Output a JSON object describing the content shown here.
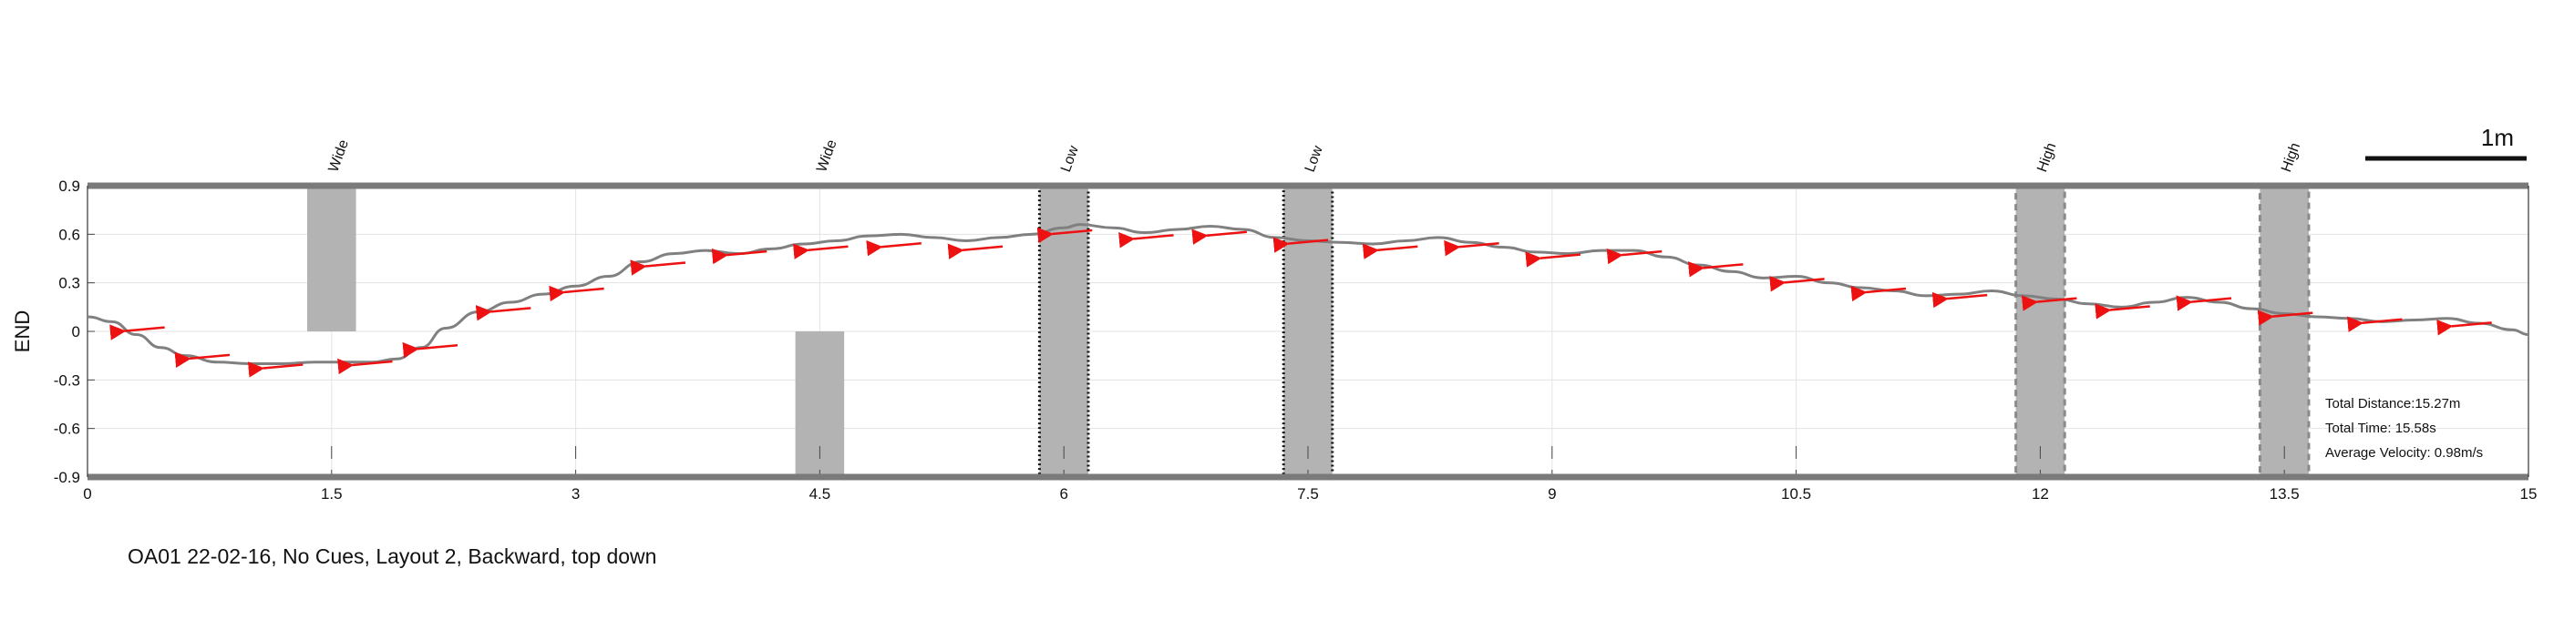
{
  "caption": "OA01 22-02-16, No Cues, Layout 2, Backward, top down",
  "stats": {
    "distance": "Total Distance:15.27m",
    "time": "Total Time: 15.58s",
    "velocity": "Average Velocity: 0.98m/s"
  },
  "scale_bar_label": "1m",
  "chart_data": {
    "type": "line",
    "xlabel": "",
    "ylabel": "END",
    "xlim": [
      0,
      15
    ],
    "ylim": [
      -0.9,
      0.9
    ],
    "xticks": [
      "0",
      "1.5",
      "3",
      "4.5",
      "6",
      "7.5",
      "9",
      "10.5",
      "12",
      "13.5",
      "15"
    ],
    "yticks": [
      "0.9",
      "0.6",
      "0.3",
      "0",
      "-0.3",
      "-0.6",
      "-0.9"
    ],
    "grid": true,
    "path": {
      "x": [
        0,
        0.15,
        0.3,
        0.45,
        0.6,
        0.8,
        1.0,
        1.2,
        1.4,
        1.6,
        1.75,
        1.9,
        2.05,
        2.2,
        2.4,
        2.6,
        2.8,
        3.0,
        3.2,
        3.4,
        3.6,
        3.8,
        4.0,
        4.2,
        4.4,
        4.6,
        4.8,
        5.0,
        5.2,
        5.4,
        5.6,
        5.8,
        6.0,
        6.1,
        6.3,
        6.5,
        6.7,
        6.9,
        7.1,
        7.3,
        7.5,
        7.7,
        7.9,
        8.1,
        8.3,
        8.5,
        8.7,
        8.9,
        9.1,
        9.3,
        9.5,
        9.7,
        9.9,
        10.1,
        10.3,
        10.5,
        10.7,
        10.9,
        11.1,
        11.3,
        11.5,
        11.7,
        11.9,
        12.1,
        12.3,
        12.5,
        12.7,
        12.9,
        13.1,
        13.3,
        13.5,
        13.7,
        13.9,
        14.1,
        14.3,
        14.5,
        14.7,
        14.9,
        15.0
      ],
      "y": [
        0.09,
        0.06,
        -0.02,
        -0.1,
        -0.15,
        -0.19,
        -0.2,
        -0.2,
        -0.19,
        -0.19,
        -0.19,
        -0.17,
        -0.1,
        0.02,
        0.12,
        0.18,
        0.23,
        0.28,
        0.34,
        0.43,
        0.48,
        0.5,
        0.48,
        0.51,
        0.54,
        0.56,
        0.59,
        0.6,
        0.58,
        0.56,
        0.58,
        0.6,
        0.64,
        0.66,
        0.64,
        0.61,
        0.63,
        0.65,
        0.63,
        0.58,
        0.56,
        0.55,
        0.54,
        0.56,
        0.58,
        0.55,
        0.52,
        0.49,
        0.48,
        0.5,
        0.5,
        0.46,
        0.41,
        0.37,
        0.33,
        0.34,
        0.3,
        0.27,
        0.25,
        0.22,
        0.23,
        0.25,
        0.22,
        0.2,
        0.17,
        0.15,
        0.18,
        0.21,
        0.18,
        0.14,
        0.11,
        0.09,
        0.08,
        0.06,
        0.07,
        0.08,
        0.05,
        0.01,
        -0.02
      ]
    },
    "arrows": [
      {
        "x": 0.25,
        "y": 0.03
      },
      {
        "x": 0.65,
        "y": -0.14
      },
      {
        "x": 1.1,
        "y": -0.2
      },
      {
        "x": 1.65,
        "y": -0.18
      },
      {
        "x": 2.05,
        "y": -0.08
      },
      {
        "x": 2.5,
        "y": 0.15
      },
      {
        "x": 2.95,
        "y": 0.27
      },
      {
        "x": 3.45,
        "y": 0.43
      },
      {
        "x": 3.95,
        "y": 0.5
      },
      {
        "x": 4.45,
        "y": 0.53
      },
      {
        "x": 4.9,
        "y": 0.55
      },
      {
        "x": 5.4,
        "y": 0.53
      },
      {
        "x": 5.95,
        "y": 0.63
      },
      {
        "x": 6.45,
        "y": 0.6
      },
      {
        "x": 6.9,
        "y": 0.62
      },
      {
        "x": 7.4,
        "y": 0.57
      },
      {
        "x": 7.95,
        "y": 0.53
      },
      {
        "x": 8.45,
        "y": 0.55
      },
      {
        "x": 8.95,
        "y": 0.48
      },
      {
        "x": 9.45,
        "y": 0.5
      },
      {
        "x": 9.95,
        "y": 0.42
      },
      {
        "x": 10.45,
        "y": 0.33
      },
      {
        "x": 10.95,
        "y": 0.27
      },
      {
        "x": 11.45,
        "y": 0.23
      },
      {
        "x": 12.0,
        "y": 0.21
      },
      {
        "x": 12.45,
        "y": 0.16
      },
      {
        "x": 12.95,
        "y": 0.21
      },
      {
        "x": 13.45,
        "y": 0.12
      },
      {
        "x": 14.0,
        "y": 0.08
      },
      {
        "x": 14.55,
        "y": 0.06
      }
    ],
    "obstacles": [
      {
        "label": "Wide",
        "x0": 1.35,
        "x1": 1.65,
        "y0": 0.0,
        "y1": 0.9,
        "style": "solid"
      },
      {
        "label": "Wide",
        "x0": 4.35,
        "x1": 4.65,
        "y0": -0.9,
        "y1": 0.0,
        "style": "solid"
      },
      {
        "label": "Low",
        "x0": 5.85,
        "x1": 6.15,
        "y0": -0.9,
        "y1": 0.9,
        "style": "dotted"
      },
      {
        "label": "Low",
        "x0": 7.35,
        "x1": 7.65,
        "y0": -0.9,
        "y1": 0.9,
        "style": "dotted"
      },
      {
        "label": "High",
        "x0": 11.85,
        "x1": 12.15,
        "y0": -0.9,
        "y1": 0.9,
        "style": "dashed"
      },
      {
        "label": "High",
        "x0": 13.35,
        "x1": 13.65,
        "y0": -0.9,
        "y1": 0.9,
        "style": "dashed"
      }
    ],
    "colors": {
      "path": "#808080",
      "arrow": "#ee1111",
      "obstacle": "#b3b3b3",
      "wall": "#7a7a7a",
      "grid": "#e3e3e3"
    }
  }
}
